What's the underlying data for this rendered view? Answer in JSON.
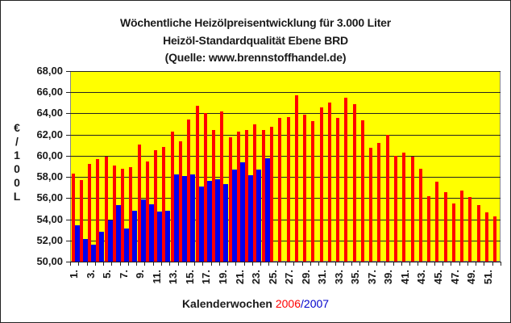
{
  "chart_data": {
    "type": "bar",
    "title": "Wöchentliche Heizölpreisentwicklung für 3.000 Liter",
    "subtitle": "Heizöl-Standardqualität Ebene BRD",
    "source": "(Quelle: www.brennstoffhandel.de)",
    "xlabel": "Kalenderwochen",
    "xlabel_series": [
      "2006",
      "2007"
    ],
    "ylabel": "€ / 100 L",
    "ylim": [
      50,
      68
    ],
    "ytick_step": 2,
    "yticks": [
      "68,00",
      "66,00",
      "64,00",
      "62,00",
      "60,00",
      "58,00",
      "56,00",
      "54,00",
      "52,00",
      "50,00"
    ],
    "grid": true,
    "legend": "in x-axis label (2006 red / 2007 blue)",
    "categories": [
      1,
      2,
      3,
      4,
      5,
      6,
      7,
      8,
      9,
      10,
      11,
      12,
      13,
      14,
      15,
      16,
      17,
      18,
      19,
      20,
      21,
      22,
      23,
      24,
      25,
      26,
      27,
      28,
      29,
      30,
      31,
      32,
      33,
      34,
      35,
      36,
      37,
      38,
      39,
      40,
      41,
      42,
      43,
      44,
      45,
      46,
      47,
      48,
      49,
      50,
      51,
      52
    ],
    "xtick_labels": [
      "1.",
      "3.",
      "5.",
      "7.",
      "9.",
      "11.",
      "13.",
      "15.",
      "17.",
      "19.",
      "21.",
      "23.",
      "25.",
      "27.",
      "29.",
      "31.",
      "33.",
      "35.",
      "37.",
      "39.",
      "41.",
      "43.",
      "45.",
      "47.",
      "49.",
      "51."
    ],
    "series": [
      {
        "name": "2006",
        "color": "#ff0000",
        "values": [
          58.3,
          57.7,
          59.25,
          59.7,
          59.9,
          59.1,
          58.8,
          58.95,
          61.05,
          59.45,
          60.55,
          60.8,
          62.25,
          61.4,
          63.45,
          64.75,
          64.0,
          62.45,
          64.2,
          61.75,
          62.3,
          62.45,
          62.95,
          62.4,
          62.75,
          63.55,
          63.65,
          65.75,
          63.85,
          63.3,
          64.6,
          65.05,
          63.55,
          65.45,
          64.9,
          63.35,
          60.75,
          61.2,
          62.0,
          60.0,
          60.3,
          59.95,
          58.75,
          56.15,
          57.55,
          56.55,
          55.5,
          56.75,
          56.1,
          55.35,
          54.65,
          54.25
        ]
      },
      {
        "name": "2007",
        "color": "#0000ee",
        "values": [
          53.45,
          52.15,
          51.6,
          52.85,
          53.9,
          55.35,
          53.15,
          54.8,
          55.85,
          55.45,
          54.7,
          54.8,
          58.2,
          58.05,
          58.2,
          57.1,
          57.65,
          57.75,
          57.3,
          58.7,
          59.35,
          58.15,
          58.7,
          59.75
        ]
      }
    ]
  },
  "labels": {
    "title1": "Wöchentliche Heizölpreisentwicklung für 3.000 Liter",
    "title2": "Heizöl-Standardqualität Ebene BRD",
    "title3": "(Quelle: www.brennstoffhandel.de)",
    "xlabel_prefix": "Kalenderwochen ",
    "year1": "2006",
    "slash": "/",
    "year2": "2007",
    "ylabel_chars": [
      "€",
      "/",
      "1",
      "0",
      "0",
      "L"
    ]
  },
  "colors": {
    "plot_bg": "#ffff00",
    "series_2006": "#ff0000",
    "series_2007": "#0000ee"
  }
}
